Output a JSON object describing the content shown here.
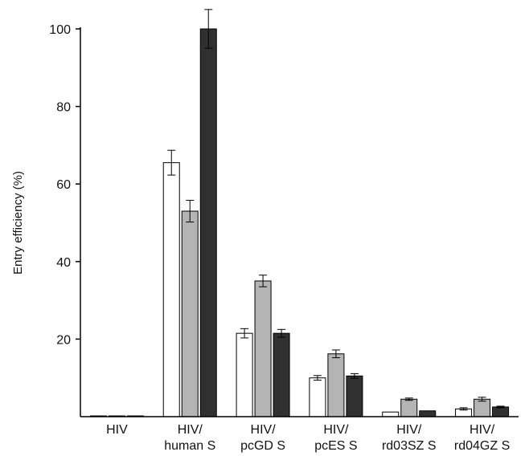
{
  "chart_data": {
    "type": "bar",
    "ylabel": "Entry efficiency (%)",
    "yticks": [
      20,
      40,
      60,
      80,
      100
    ],
    "ylim": [
      0,
      100
    ],
    "categories": [
      [
        "HIV"
      ],
      [
        "HIV/",
        "human S"
      ],
      [
        "HIV/",
        "pcGD S"
      ],
      [
        "HIV/",
        "pcES S"
      ],
      [
        "HIV/",
        "rd03SZ S"
      ],
      [
        "HIV/",
        "rd04GZ S"
      ]
    ],
    "series": [
      {
        "color": "#ffffff",
        "values": [
          0.2,
          65.5,
          21.5,
          10,
          1.2,
          2
        ],
        "errors": [
          0,
          3.2,
          1.2,
          0.6,
          0,
          0.3
        ]
      },
      {
        "color": "#b4b4b4",
        "values": [
          0.2,
          53,
          35,
          16.2,
          4.5,
          4.5
        ],
        "errors": [
          0,
          2.8,
          1.5,
          1.0,
          0.3,
          0.5
        ]
      },
      {
        "color": "#303030",
        "values": [
          0.2,
          100,
          21.5,
          10.5,
          1.5,
          2.5
        ],
        "errors": [
          0,
          5,
          1.0,
          0.6,
          0,
          0.2
        ]
      }
    ]
  }
}
